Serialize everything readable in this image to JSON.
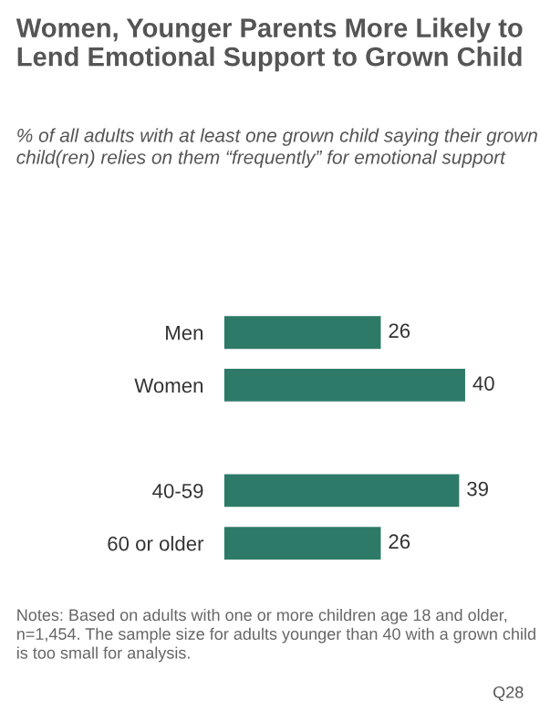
{
  "chart_data": {
    "type": "bar",
    "orientation": "horizontal",
    "data_labels": true,
    "grid": false,
    "legend": false,
    "title": "Women, Younger Parents More Likely to Lend Emotional Support to Grown Child",
    "subtitle": "% of all adults with at least one grown child saying their grown child(ren) relies on them “frequently” for emotional support",
    "categories": [
      "Men",
      "Women",
      null,
      "40-59",
      "60 or older"
    ],
    "values": [
      26,
      40,
      null,
      39,
      26
    ],
    "color": "#2e7a68",
    "annotations": [
      "Notes: Based on adults with one or more children age 18 and older, n=1,454. The sample size for adults younger than 40 with a grown child is too small for analysis.",
      "Q28"
    ]
  }
}
